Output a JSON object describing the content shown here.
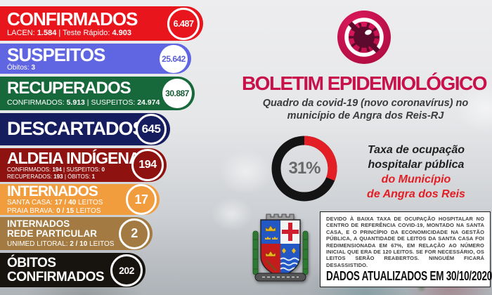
{
  "palette": {
    "confirmados": "#e9151c",
    "suspeitos": "#6065e1",
    "recuperados": "#17693c",
    "descartados": "#151d5f",
    "aldeia_indigena": "#8e1310",
    "internados": "#f19c3d",
    "rede_particular": "#a37a41",
    "obitos": "#17130f",
    "title_crimson": "#c8104b",
    "accent_red": "#e31e24",
    "donut_black": "#141414",
    "background_gray": "#e6e7e9"
  },
  "stats_rows": [
    {
      "title": "CONFIRMADOS",
      "badge": "6.487",
      "sub1": [
        {
          "t": "LACEN: ",
          "b": 0
        },
        {
          "t": "1.584",
          "b": 1
        },
        {
          "t": "  |  ",
          "b": 0
        },
        {
          "t": "Teste Rápido: ",
          "b": 0
        },
        {
          "t": "4.903",
          "b": 1
        }
      ]
    },
    {
      "title": "SUSPEITOS",
      "badge": "25.642",
      "sub1": [
        {
          "t": "Óbitos: ",
          "b": 0
        },
        {
          "t": "3",
          "b": 1
        }
      ]
    },
    {
      "title": "RECUPERADOS",
      "badge": "30.887",
      "sub1": [
        {
          "t": "CONFIRMADOS: ",
          "b": 0
        },
        {
          "t": "5.913",
          "b": 1
        },
        {
          "t": "  |  ",
          "b": 0
        },
        {
          "t": "SUSPEITOS: ",
          "b": 0
        },
        {
          "t": "24.974",
          "b": 1
        }
      ]
    },
    {
      "title": "DESCARTADOS",
      "badge": "645"
    },
    {
      "title": "ALDEIA INDÍGENA",
      "badge": "194",
      "sub1": [
        {
          "t": "CONFIRMADOS: ",
          "b": 0
        },
        {
          "t": "194",
          "b": 1
        },
        {
          "t": " | ",
          "b": 0
        },
        {
          "t": "SUSPEITOS: ",
          "b": 0
        },
        {
          "t": "0",
          "b": 1
        }
      ],
      "sub2": [
        {
          "t": "RECUPERADOS: ",
          "b": 0
        },
        {
          "t": "193",
          "b": 1
        },
        {
          "t": " | ",
          "b": 0
        },
        {
          "t": "ÓBITOS: ",
          "b": 0
        },
        {
          "t": "1",
          "b": 1
        }
      ]
    },
    {
      "title": "INTERNADOS",
      "badge": "17",
      "sub1": [
        {
          "t": "SANTA CASA: ",
          "b": 0
        },
        {
          "t": "17 / 40",
          "b": 1
        },
        {
          "t": " LEITOS",
          "b": 0
        }
      ],
      "sub2": [
        {
          "t": "PRAIA BRAVA: ",
          "b": 0
        },
        {
          "t": "0 / 15",
          "b": 1
        },
        {
          "t": " LEITOS",
          "b": 0
        }
      ]
    },
    {
      "title_line1": "INTERNADOS",
      "title_line2": "REDE PARTICULAR",
      "badge": "2",
      "sub1": [
        {
          "t": "UNIMED LITORAL: ",
          "b": 0
        },
        {
          "t": "2 / 10",
          "b": 1
        },
        {
          "t": " LEITOS",
          "b": 0
        }
      ]
    },
    {
      "title_line1": "ÓBITOS",
      "title_line2": "CONFIRMADOS",
      "badge": "202"
    }
  ],
  "header": {
    "icon": "no-virus-icon",
    "title": "BOLETIM EPIDEMIOLÓGICO",
    "subtitle_line1": "Quadro da covid-19 (novo coronavírus) no",
    "subtitle_line2": "município de Angra dos Reis-RJ"
  },
  "occupancy": {
    "percent": "31%",
    "label_line1": "Taxa de ocupação",
    "label_line2": "hospitalar pública",
    "label_line3": "do Município",
    "label_line4": "de Angra dos Reis"
  },
  "notice": {
    "paragraph": "DEVIDO À BAIXA TAXA DE OCUPAÇÃO HOSPITALAR NO CENTRO DE REFERÊNCIA COVID-19, MONTADO NA SANTA CASA, E O PRINCÍPIO DA ECONOMICIDADE NA GESTÃO PÚBLICA, A QUANTIDADE DE LEITOS DA SANTA CASA FOI REDIMENSIONADA EM 67%, EM RELAÇÃO AO NÚMERO INICIAL QUE ERA DE 120 LEITOS. SE FOR NECESSÁRIO, OS LEITOS SERÃO REABERTOS. NINGUÉM FICARÁ DESASSISTIDO.",
    "updated": "DADOS ATUALIZADOS EM 30/10/2020"
  },
  "chart_data": [
    {
      "type": "pie",
      "donut": true,
      "title": "Taxa de ocupação hospitalar pública do Município de Angra dos Reis",
      "labels": [
        "ocupado",
        "livre"
      ],
      "values": [
        31,
        69
      ],
      "colors": [
        "#e31e24",
        "#141414"
      ],
      "center_label": "31%",
      "start_angle_deg": 0,
      "direction": "clockwise"
    },
    {
      "type": "table",
      "title": "Boletim Epidemiológico covid-19 — Angra dos Reis-RJ — 30/10/2020",
      "columns": [
        "categoria",
        "total"
      ],
      "rows": [
        [
          "CONFIRMADOS (LACEN 1.584 + Teste Rápido 4.903)",
          6487
        ],
        [
          "SUSPEITOS (Óbitos 3)",
          25642
        ],
        [
          "RECUPERADOS (Confirmados 5.913 + Suspeitos 24.974)",
          30887
        ],
        [
          "DESCARTADOS",
          645
        ],
        [
          "ALDEIA INDÍGENA (Conf. 194, Susp. 0, Recup. 193, Óbitos 1)",
          194
        ],
        [
          "INTERNADOS (Santa Casa 17/40 leitos, Praia Brava 0/15 leitos)",
          17
        ],
        [
          "INTERNADOS REDE PARTICULAR (Unimed Litoral 2/10 leitos)",
          2
        ],
        [
          "ÓBITOS CONFIRMADOS",
          202
        ]
      ]
    }
  ]
}
